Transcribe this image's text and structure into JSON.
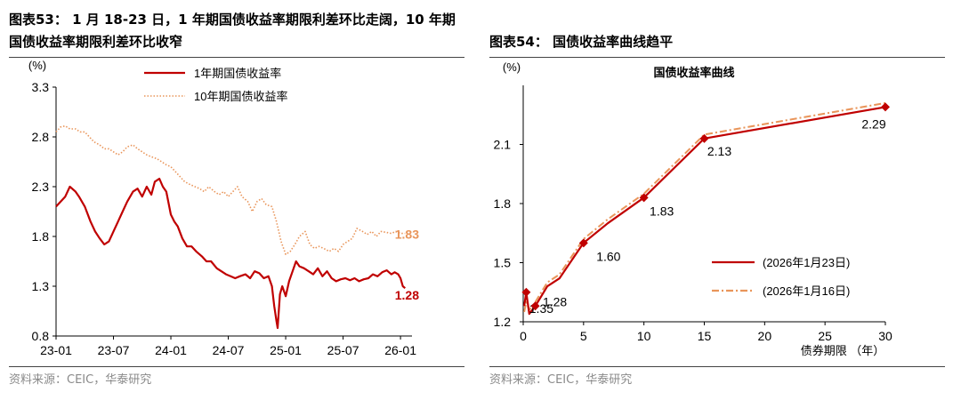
{
  "colors": {
    "red": "#C00000",
    "orange": "#E9955A",
    "axis": "#000000",
    "source": "#8A8A8A"
  },
  "left": {
    "title_line1": "图表53：  1 月 18-23 日，1 年期国债收益率期限利差环比走阔，10 年期",
    "title_line2": "国债收益率期限利差环比收窄",
    "source": "资料来源：CEIC，华泰研究"
  },
  "right": {
    "title": "图表54：   国债收益率曲线趋平",
    "source": "资料来源：CEIC，华泰研究"
  },
  "chart_data": [
    {
      "type": "line",
      "title": "",
      "ylabel": "(%)",
      "xlabel": "",
      "ylim": [
        0.8,
        3.3
      ],
      "yticks": [
        0.8,
        1.3,
        1.8,
        2.3,
        2.8,
        3.3
      ],
      "ytick_labels": [
        "0.8",
        "1.3",
        "1.8",
        "2.3",
        "2.8",
        "3.3"
      ],
      "xlim": [
        2023.0,
        2026.1
      ],
      "xticks": [
        2023.0,
        2023.5,
        2024.0,
        2024.5,
        2025.0,
        2025.5,
        2026.0
      ],
      "xtick_labels": [
        "23-01",
        "23-07",
        "24-01",
        "24-07",
        "25-01",
        "25-07",
        "26-01"
      ],
      "legend": "top-center",
      "series": [
        {
          "name": "1年期国债收益率",
          "color": "#C00000",
          "style": "solid",
          "end_label": "1.28",
          "x": [
            2023.0,
            2023.04,
            2023.08,
            2023.12,
            2023.17,
            2023.2,
            2023.25,
            2023.3,
            2023.34,
            2023.38,
            2023.42,
            2023.46,
            2023.5,
            2023.54,
            2023.58,
            2023.62,
            2023.67,
            2023.71,
            2023.75,
            2023.79,
            2023.83,
            2023.86,
            2023.9,
            2023.93,
            2023.96,
            2024.0,
            2024.03,
            2024.06,
            2024.1,
            2024.14,
            2024.18,
            2024.22,
            2024.27,
            2024.31,
            2024.35,
            2024.4,
            2024.44,
            2024.48,
            2024.52,
            2024.56,
            2024.6,
            2024.65,
            2024.69,
            2024.73,
            2024.77,
            2024.81,
            2024.85,
            2024.88,
            2024.9,
            2024.92,
            2024.93,
            2024.95,
            2024.97,
            2025.0,
            2025.03,
            2025.06,
            2025.09,
            2025.12,
            2025.16,
            2025.2,
            2025.24,
            2025.28,
            2025.32,
            2025.36,
            2025.4,
            2025.44,
            2025.48,
            2025.52,
            2025.56,
            2025.6,
            2025.64,
            2025.68,
            2025.72,
            2025.76,
            2025.8,
            2025.84,
            2025.88,
            2025.92,
            2025.95,
            2025.98,
            2026.0,
            2026.02,
            2026.04
          ],
          "y": [
            2.1,
            2.15,
            2.2,
            2.3,
            2.25,
            2.2,
            2.1,
            1.95,
            1.85,
            1.78,
            1.72,
            1.75,
            1.85,
            1.95,
            2.05,
            2.15,
            2.25,
            2.28,
            2.2,
            2.3,
            2.22,
            2.35,
            2.38,
            2.3,
            2.25,
            2.02,
            1.95,
            1.9,
            1.78,
            1.7,
            1.7,
            1.65,
            1.6,
            1.55,
            1.55,
            1.48,
            1.45,
            1.42,
            1.4,
            1.38,
            1.4,
            1.42,
            1.38,
            1.45,
            1.43,
            1.38,
            1.4,
            1.3,
            1.1,
            0.95,
            0.88,
            1.22,
            1.3,
            1.2,
            1.35,
            1.45,
            1.55,
            1.5,
            1.48,
            1.45,
            1.42,
            1.48,
            1.4,
            1.45,
            1.38,
            1.35,
            1.37,
            1.38,
            1.36,
            1.38,
            1.35,
            1.37,
            1.38,
            1.42,
            1.4,
            1.44,
            1.46,
            1.42,
            1.44,
            1.42,
            1.38,
            1.3,
            1.28
          ]
        },
        {
          "name": "10年期国债收益率",
          "color": "#E9955A",
          "style": "dotted",
          "end_label": "1.83",
          "x": [
            2023.0,
            2023.04,
            2023.08,
            2023.12,
            2023.17,
            2023.21,
            2023.25,
            2023.29,
            2023.33,
            2023.38,
            2023.42,
            2023.46,
            2023.5,
            2023.54,
            2023.58,
            2023.62,
            2023.67,
            2023.71,
            2023.75,
            2023.79,
            2023.83,
            2023.88,
            2023.92,
            2023.96,
            2024.0,
            2024.04,
            2024.08,
            2024.12,
            2024.17,
            2024.21,
            2024.25,
            2024.29,
            2024.33,
            2024.38,
            2024.42,
            2024.46,
            2024.5,
            2024.54,
            2024.58,
            2024.62,
            2024.67,
            2024.71,
            2024.75,
            2024.79,
            2024.83,
            2024.88,
            2024.92,
            2024.96,
            2025.0,
            2025.04,
            2025.08,
            2025.12,
            2025.17,
            2025.21,
            2025.25,
            2025.29,
            2025.33,
            2025.38,
            2025.42,
            2025.46,
            2025.5,
            2025.54,
            2025.58,
            2025.62,
            2025.67,
            2025.71,
            2025.75,
            2025.79,
            2025.83,
            2025.88,
            2025.92,
            2025.96,
            2026.0,
            2026.04
          ],
          "y": [
            2.85,
            2.9,
            2.91,
            2.88,
            2.88,
            2.85,
            2.85,
            2.8,
            2.75,
            2.72,
            2.68,
            2.68,
            2.65,
            2.62,
            2.65,
            2.7,
            2.72,
            2.68,
            2.65,
            2.62,
            2.6,
            2.58,
            2.55,
            2.52,
            2.5,
            2.45,
            2.4,
            2.35,
            2.32,
            2.3,
            2.28,
            2.25,
            2.3,
            2.25,
            2.22,
            2.25,
            2.2,
            2.25,
            2.3,
            2.2,
            2.15,
            2.05,
            2.15,
            2.18,
            2.12,
            2.1,
            1.95,
            1.75,
            1.62,
            1.65,
            1.72,
            1.8,
            1.85,
            1.72,
            1.68,
            1.7,
            1.68,
            1.65,
            1.68,
            1.65,
            1.72,
            1.75,
            1.78,
            1.88,
            1.85,
            1.82,
            1.85,
            1.8,
            1.85,
            1.84,
            1.83,
            1.85,
            1.83,
            1.83
          ]
        }
      ]
    },
    {
      "type": "line",
      "title": "国债收益率曲线",
      "ylabel": "(%)",
      "xlabel": "债券期限 （年）",
      "ylim": [
        1.2,
        2.4
      ],
      "yticks": [
        1.2,
        1.5,
        1.8,
        2.1
      ],
      "ytick_labels": [
        "1.2",
        "1.5",
        "1.8",
        "2.1"
      ],
      "xlim": [
        0,
        30
      ],
      "xticks": [
        0,
        5,
        10,
        15,
        20,
        25,
        30
      ],
      "xtick_labels": [
        "0",
        "5",
        "10",
        "15",
        "20",
        "25",
        "30"
      ],
      "legend": "right",
      "series": [
        {
          "name": "(2026年1月23日)",
          "color": "#C00000",
          "style": "solid",
          "markers": "diamond",
          "x": [
            0.08,
            0.25,
            0.5,
            1,
            2,
            3,
            5,
            7,
            10,
            15,
            30
          ],
          "y": [
            1.28,
            1.35,
            1.24,
            1.28,
            1.38,
            1.42,
            1.6,
            1.7,
            1.83,
            2.13,
            2.29
          ],
          "marker_points": [
            [
              0.25,
              1.35
            ],
            [
              1,
              1.28
            ],
            [
              5,
              1.6
            ],
            [
              10,
              1.83
            ],
            [
              15,
              2.13
            ],
            [
              30,
              2.29
            ]
          ],
          "labels": [
            "1.35",
            "1.28",
            "1.60",
            "1.83",
            "2.13",
            "2.29"
          ]
        },
        {
          "name": "(2026年1月16日)",
          "color": "#E9955A",
          "style": "dashdot",
          "x": [
            0.08,
            0.25,
            0.5,
            1,
            2,
            3,
            5,
            7,
            10,
            15,
            30
          ],
          "y": [
            1.25,
            1.3,
            1.26,
            1.3,
            1.4,
            1.44,
            1.62,
            1.72,
            1.85,
            2.15,
            2.31
          ]
        }
      ]
    }
  ]
}
